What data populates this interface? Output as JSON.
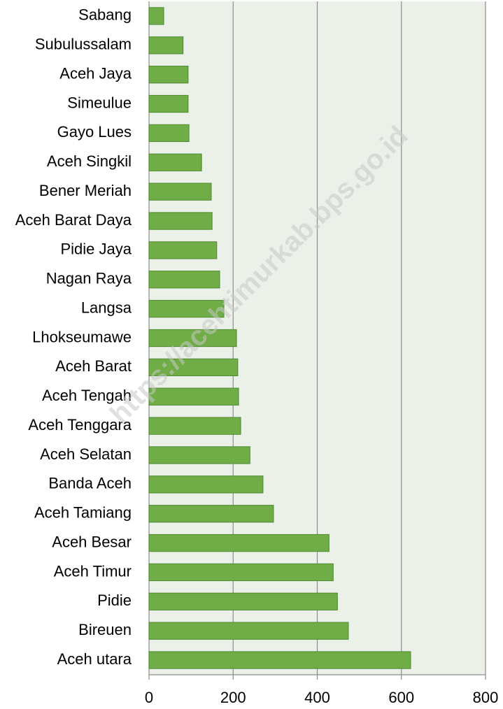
{
  "chart_data": {
    "type": "barh",
    "categories": [
      "Sabang",
      "Subulussalam",
      "Aceh Jaya",
      "Simeulue",
      "Gayo Lues",
      "Aceh Singkil",
      "Bener Meriah",
      "Aceh Barat Daya",
      "Pidie Jaya",
      "Nagan Raya",
      "Langsa",
      "Lhokseumawe",
      "Aceh Barat",
      "Aceh Tengah",
      "Aceh Tenggara",
      "Aceh Selatan",
      "Banda Aceh",
      "Aceh Tamiang",
      "Aceh Besar",
      "Aceh Timur",
      "Pidie",
      "Bireuen",
      "Aceh utara"
    ],
    "values": [
      35,
      81,
      93,
      93,
      95,
      125,
      148,
      150,
      161,
      168,
      178,
      208,
      211,
      213,
      218,
      240,
      271,
      296,
      428,
      438,
      448,
      474,
      622
    ],
    "color": "#70ad47",
    "xlim": [
      0,
      800
    ],
    "xticks": [
      0,
      200,
      400,
      600,
      800
    ],
    "grid": true,
    "watermark": "https://acehtimurkab.bps.go.id"
  }
}
